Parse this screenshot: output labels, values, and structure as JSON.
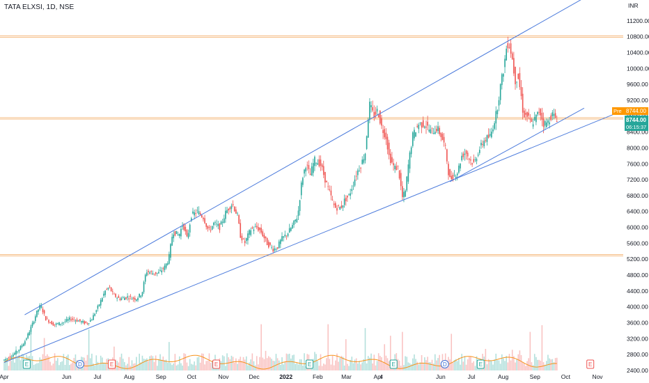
{
  "header": {
    "symbol": "TATA ELXSI, 1D, NSE"
  },
  "chart_data": {
    "type": "candlestick",
    "symbol": "TATA ELXSI",
    "interval": "1D",
    "exchange": "NSE",
    "currency": "INR",
    "ylim": [
      2400,
      11600
    ],
    "y_ticks": [
      2400,
      2800,
      3200,
      3600,
      4000,
      4400,
      4800,
      5200,
      5600,
      6000,
      6400,
      6800,
      7200,
      7600,
      8000,
      8400,
      8800,
      9200,
      9600,
      10000,
      10400,
      10800,
      11200
    ],
    "y_tick_labels": [
      "2400.00",
      "2800.00",
      "3200.00",
      "3600.00",
      "4000.00",
      "4400.00",
      "4800.00",
      "5200.00",
      "5600.00",
      "6000.00",
      "6400.00",
      "6800.00",
      "7200.00",
      "7600.00",
      "8000.00",
      "8400.00",
      "8800.00",
      "9200.00",
      "9600.00",
      "10000.00",
      "10400.00",
      "10800.00",
      "11200.00"
    ],
    "x_ticks": [
      {
        "label": "Apr",
        "t": 0
      },
      {
        "label": "Jun",
        "t": 61
      },
      {
        "label": "Jul",
        "t": 91
      },
      {
        "label": "Aug",
        "t": 122
      },
      {
        "label": "Sep",
        "t": 153
      },
      {
        "label": "Oct",
        "t": 183
      },
      {
        "label": "Nov",
        "t": 214
      },
      {
        "label": "Dec",
        "t": 244
      },
      {
        "label": "2022",
        "t": 275
      },
      {
        "label": "Feb",
        "t": 306
      },
      {
        "label": "Mar",
        "t": 334
      },
      {
        "label": "Apr",
        "t": 365
      },
      {
        "label": "4",
        "t": 368
      },
      {
        "label": "Jun",
        "t": 426
      },
      {
        "label": "Jul",
        "t": 456
      },
      {
        "label": "Aug",
        "t": 487
      },
      {
        "label": "Sep",
        "t": 518
      },
      {
        "label": "Oct",
        "t": 548
      },
      {
        "label": "Nov",
        "t": 579
      }
    ],
    "price_path": [
      [
        0,
        2650
      ],
      [
        8,
        2760
      ],
      [
        15,
        2900
      ],
      [
        22,
        3150
      ],
      [
        28,
        3500
      ],
      [
        33,
        3850
      ],
      [
        37,
        4050
      ],
      [
        42,
        3700
      ],
      [
        50,
        3550
      ],
      [
        58,
        3600
      ],
      [
        66,
        3700
      ],
      [
        74,
        3650
      ],
      [
        82,
        3580
      ],
      [
        87,
        3700
      ],
      [
        93,
        4000
      ],
      [
        100,
        4400
      ],
      [
        104,
        4500
      ],
      [
        108,
        4300
      ],
      [
        114,
        4200
      ],
      [
        122,
        4250
      ],
      [
        130,
        4200
      ],
      [
        136,
        4350
      ],
      [
        140,
        4900
      ],
      [
        146,
        4850
      ],
      [
        152,
        4850
      ],
      [
        158,
        5000
      ],
      [
        162,
        5200
      ],
      [
        166,
        5900
      ],
      [
        172,
        5800
      ],
      [
        176,
        6100
      ],
      [
        180,
        5700
      ],
      [
        184,
        6300
      ],
      [
        190,
        6400
      ],
      [
        196,
        6250
      ],
      [
        201,
        5900
      ],
      [
        206,
        6100
      ],
      [
        212,
        6000
      ],
      [
        218,
        6400
      ],
      [
        224,
        6600
      ],
      [
        229,
        6300
      ],
      [
        232,
        5800
      ],
      [
        236,
        5600
      ],
      [
        242,
        5950
      ],
      [
        248,
        6000
      ],
      [
        252,
        5900
      ],
      [
        258,
        5600
      ],
      [
        264,
        5450
      ],
      [
        268,
        5500
      ],
      [
        272,
        5700
      ],
      [
        278,
        5850
      ],
      [
        283,
        6050
      ],
      [
        288,
        6300
      ],
      [
        292,
        7200
      ],
      [
        296,
        7600
      ],
      [
        300,
        7300
      ],
      [
        304,
        7700
      ],
      [
        310,
        7600
      ],
      [
        316,
        7100
      ],
      [
        320,
        6800
      ],
      [
        324,
        6500
      ],
      [
        330,
        6500
      ],
      [
        334,
        6700
      ],
      [
        338,
        6800
      ],
      [
        342,
        7100
      ],
      [
        346,
        7400
      ],
      [
        350,
        7600
      ],
      [
        354,
        7900
      ],
      [
        356,
        8600
      ],
      [
        358,
        9100
      ],
      [
        362,
        8800
      ],
      [
        366,
        8950
      ],
      [
        370,
        8500
      ],
      [
        374,
        8300
      ],
      [
        377,
        7800
      ],
      [
        382,
        7500
      ],
      [
        386,
        7500
      ],
      [
        390,
        6750
      ],
      [
        393,
        6900
      ],
      [
        396,
        7600
      ],
      [
        400,
        8300
      ],
      [
        406,
        8600
      ],
      [
        412,
        8600
      ],
      [
        418,
        8400
      ],
      [
        424,
        8500
      ],
      [
        428,
        8300
      ],
      [
        432,
        8000
      ],
      [
        436,
        7200
      ],
      [
        440,
        7300
      ],
      [
        444,
        7400
      ],
      [
        448,
        7800
      ],
      [
        452,
        7900
      ],
      [
        456,
        7700
      ],
      [
        460,
        7600
      ],
      [
        464,
        7900
      ],
      [
        470,
        8200
      ],
      [
        476,
        8300
      ],
      [
        482,
        8900
      ],
      [
        486,
        9600
      ],
      [
        489,
        10000
      ],
      [
        492,
        10600
      ],
      [
        494,
        10650
      ],
      [
        497,
        10300
      ],
      [
        500,
        9700
      ],
      [
        503,
        9800
      ],
      [
        506,
        9300
      ],
      [
        508,
        8850
      ],
      [
        512,
        8800
      ],
      [
        516,
        8600
      ],
      [
        520,
        8750
      ],
      [
        524,
        8950
      ],
      [
        528,
        8600
      ],
      [
        532,
        8650
      ],
      [
        536,
        8850
      ],
      [
        540,
        8744
      ]
    ],
    "volume_series": {
      "ylim": [
        0,
        7000000
      ],
      "bars_color_note": "green on up days, red on down days",
      "moving_average_color": "#f7931a"
    },
    "horizontal_levels": [
      {
        "price": 10800,
        "color": "#f2a65a"
      },
      {
        "price": 8744,
        "color": "#f2a65a"
      },
      {
        "price": 5300,
        "color": "#f2a65a"
      }
    ],
    "trend_lines": [
      {
        "from": {
          "t": 20,
          "price": 3800
        },
        "to": {
          "t": 578,
          "price": 11950
        },
        "color": "#4c7bdc"
      },
      {
        "from": {
          "t": 0,
          "price": 2600
        },
        "to": {
          "t": 600,
          "price": 8900
        },
        "color": "#4c7bdc"
      },
      {
        "from": {
          "t": 435,
          "price": 7150
        },
        "to": {
          "t": 566,
          "price": 9000
        },
        "color": "#4c7bdc"
      }
    ],
    "event_markers": [
      {
        "label": "E",
        "t": 22,
        "kind": "earnings"
      },
      {
        "label": "D",
        "t": 74,
        "kind": "dividend"
      },
      {
        "label": "E",
        "t": 105,
        "kind": "earnings"
      },
      {
        "label": "E",
        "t": 207,
        "kind": "earnings"
      },
      {
        "label": "E",
        "t": 298,
        "kind": "earnings"
      },
      {
        "label": "E",
        "t": 380,
        "kind": "earnings"
      },
      {
        "label": "D",
        "t": 430,
        "kind": "dividend"
      },
      {
        "label": "E",
        "t": 465,
        "kind": "earnings"
      },
      {
        "label": "E",
        "t": 572,
        "kind": "upcoming"
      }
    ],
    "last_price": 8744,
    "pre_market": {
      "label": "Pre",
      "price_label": "8744.00"
    },
    "current_price_label": "8744.00",
    "countdown_label": "06:15:37"
  },
  "colors": {
    "up": "#26a69a",
    "down": "#ef5350",
    "trend": "#4c7bdc",
    "level": "#f2a65a",
    "pre_badge": "#ff9800",
    "current_badge": "#26a69a",
    "text": "#131722"
  }
}
